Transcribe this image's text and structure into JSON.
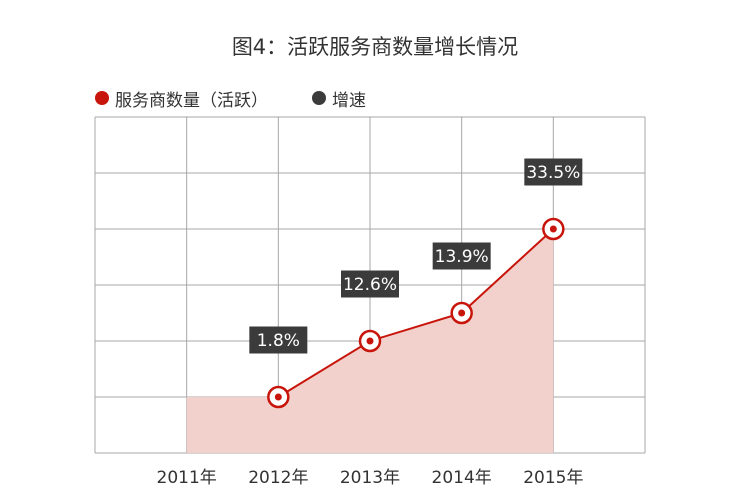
{
  "chart_data": {
    "type": "area",
    "title": "图4：活跃服务商数量增长情况",
    "categories": [
      "2011年",
      "2012年",
      "2013年",
      "2014年",
      "2015年"
    ],
    "series": [
      {
        "name": "服务商数量（活跃）",
        "values": [
          1.0,
          1.0,
          2.0,
          2.5,
          4.0
        ]
      },
      {
        "name": "增速",
        "values": [
          null,
          "1.8%",
          "12.6%",
          "13.9%",
          "33.5%"
        ]
      }
    ],
    "ylim": [
      0,
      6
    ],
    "grid": true,
    "legend_position": "top-left"
  },
  "colors": {
    "line": "#c8150b",
    "area": "#f2d0cb",
    "grid": "#a7a7a7",
    "badge": "#3b3b3b"
  }
}
